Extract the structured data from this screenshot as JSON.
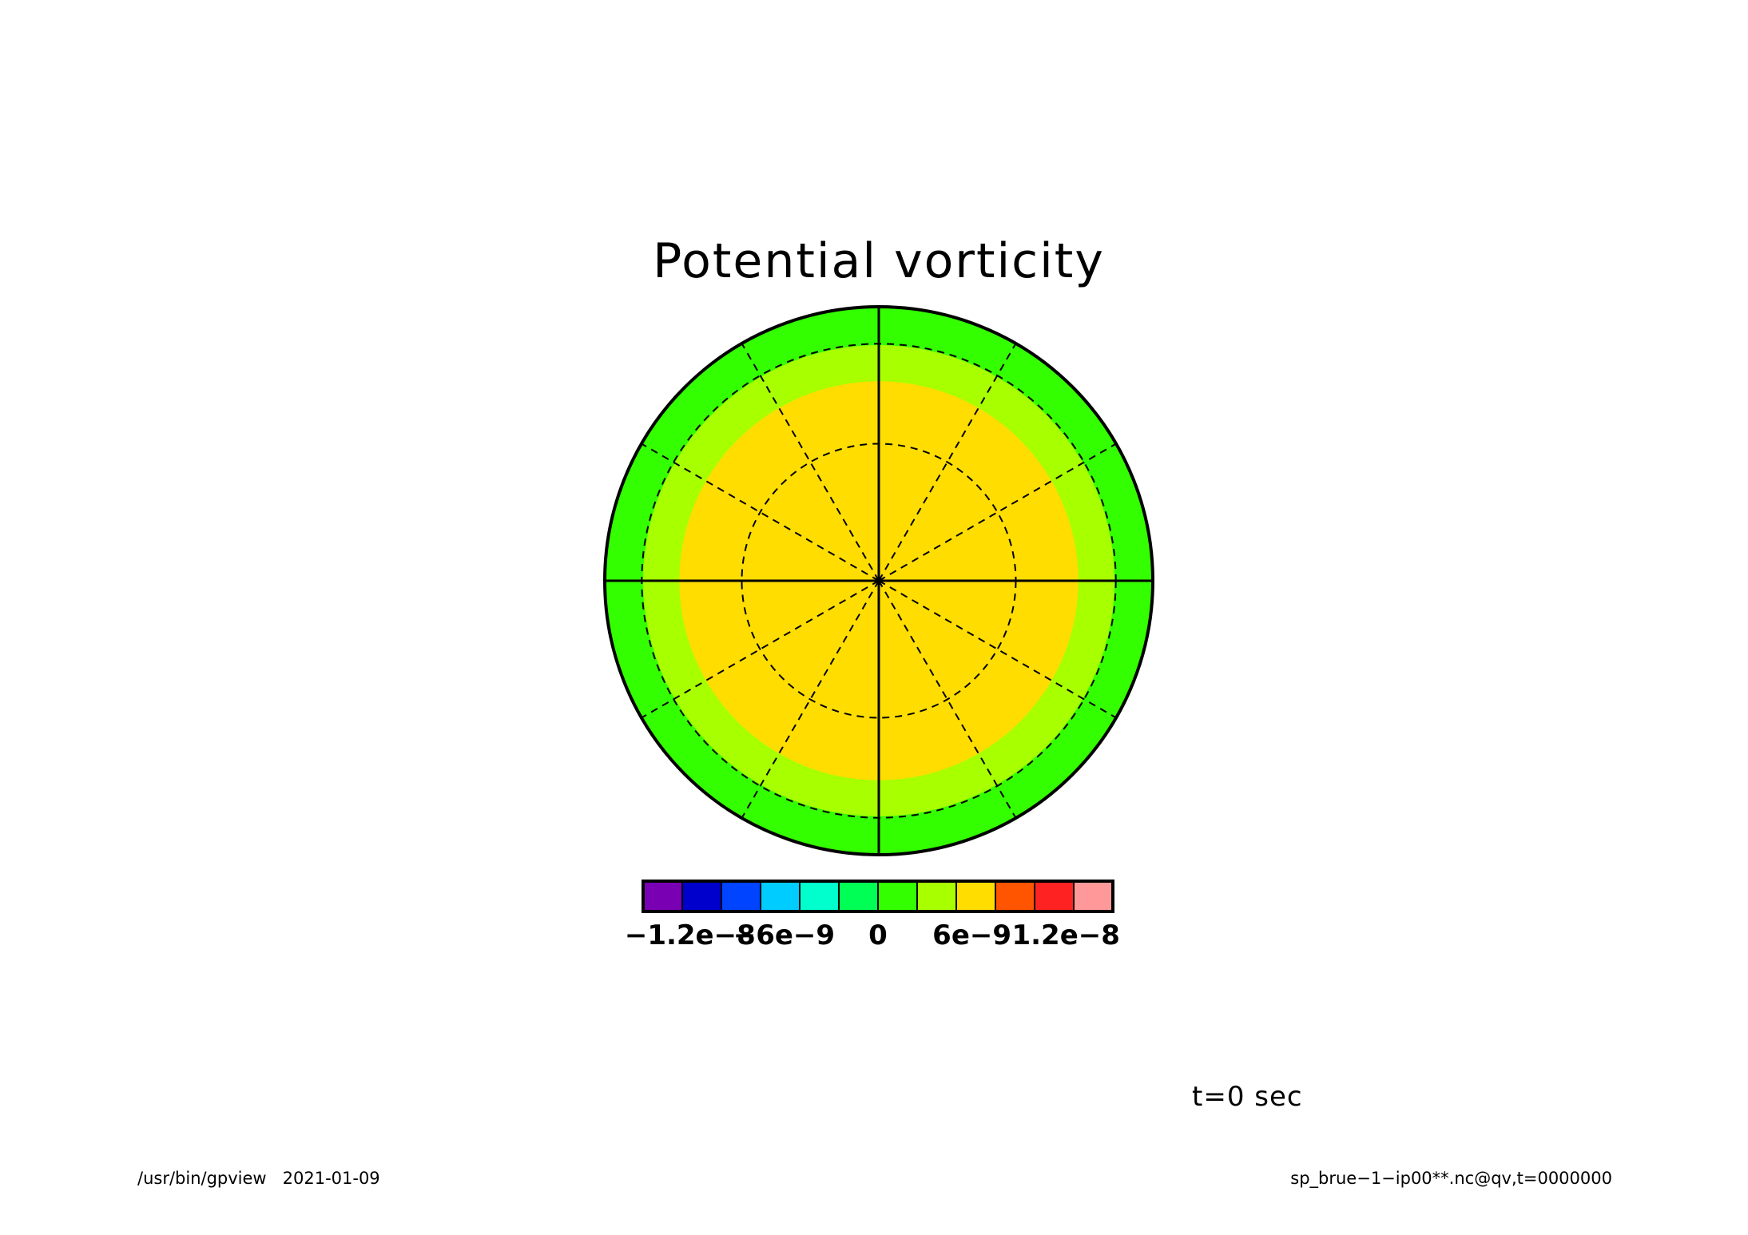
{
  "chart_data": {
    "type": "heatmap",
    "projection": "polar-stereographic",
    "title": "Potential vorticity",
    "field_rings": [
      {
        "level": "6e-9",
        "color": "#ffdd00"
      },
      {
        "level": "3e-9",
        "color": "#a8ff00"
      },
      {
        "level": "0",
        "color": "#33ff00"
      }
    ],
    "colorbar": {
      "colors": [
        "#7a00b4",
        "#0000cd",
        "#0044ff",
        "#00ccff",
        "#00ffcc",
        "#00ff55",
        "#33ff00",
        "#a8ff00",
        "#ffdd00",
        "#ff5500",
        "#ff2222",
        "#ff9999"
      ],
      "tick_labels": [
        "−1.2e−8",
        "−6e−9",
        "0",
        "6e−9",
        "1.2e−8"
      ],
      "tick_values": [
        -1.2e-08,
        -6e-09,
        0,
        6e-09,
        1.2e-08
      ],
      "range": [
        -1.5e-08,
        1.5e-08
      ]
    },
    "grid": true,
    "time_label": "t=0 sec"
  },
  "footer": {
    "left": "/usr/bin/gpview   2021-01-09",
    "right": "sp_brue−1−ip00**.nc@qv,t=0000000"
  }
}
